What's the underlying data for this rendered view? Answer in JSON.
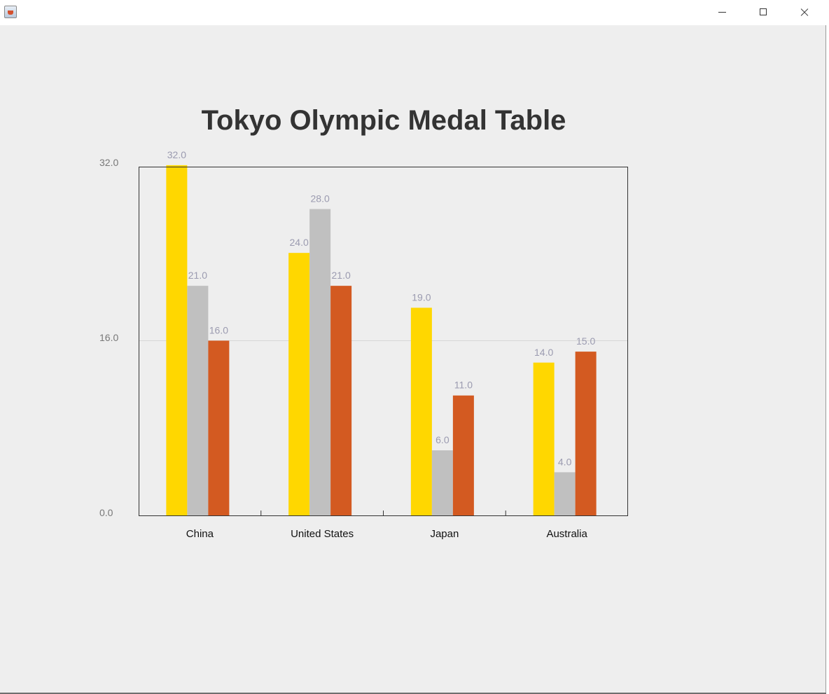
{
  "window": {
    "icon": "java-cup-icon",
    "controls": [
      "minimize-icon",
      "maximize-icon",
      "close-icon"
    ]
  },
  "chart_data": {
    "type": "bar",
    "title": "Tokyo Olympic Medal Table",
    "categories": [
      "China",
      "United States",
      "Japan",
      "Australia"
    ],
    "series": [
      {
        "values": [
          32,
          24,
          19,
          14
        ],
        "color": "#FFD700"
      },
      {
        "values": [
          21,
          28,
          6,
          4
        ],
        "color": "#C0C0C0"
      },
      {
        "values": [
          16,
          21,
          11,
          15
        ],
        "color": "#D35A21"
      }
    ],
    "value_labels": [
      [
        "32.0",
        "24.0",
        "19.0",
        "14.0"
      ],
      [
        "21.0",
        "28.0",
        "6.0",
        "4.0"
      ],
      [
        "16.0",
        "21.0",
        "11.0",
        "15.0"
      ]
    ],
    "yticks": [
      "0.0",
      "16.0",
      "32.0"
    ],
    "ytick_values": [
      0,
      16,
      32
    ],
    "ylim": [
      0,
      32
    ],
    "grid": "horizontal",
    "legend": "none",
    "xlabel": "",
    "ylabel": ""
  }
}
